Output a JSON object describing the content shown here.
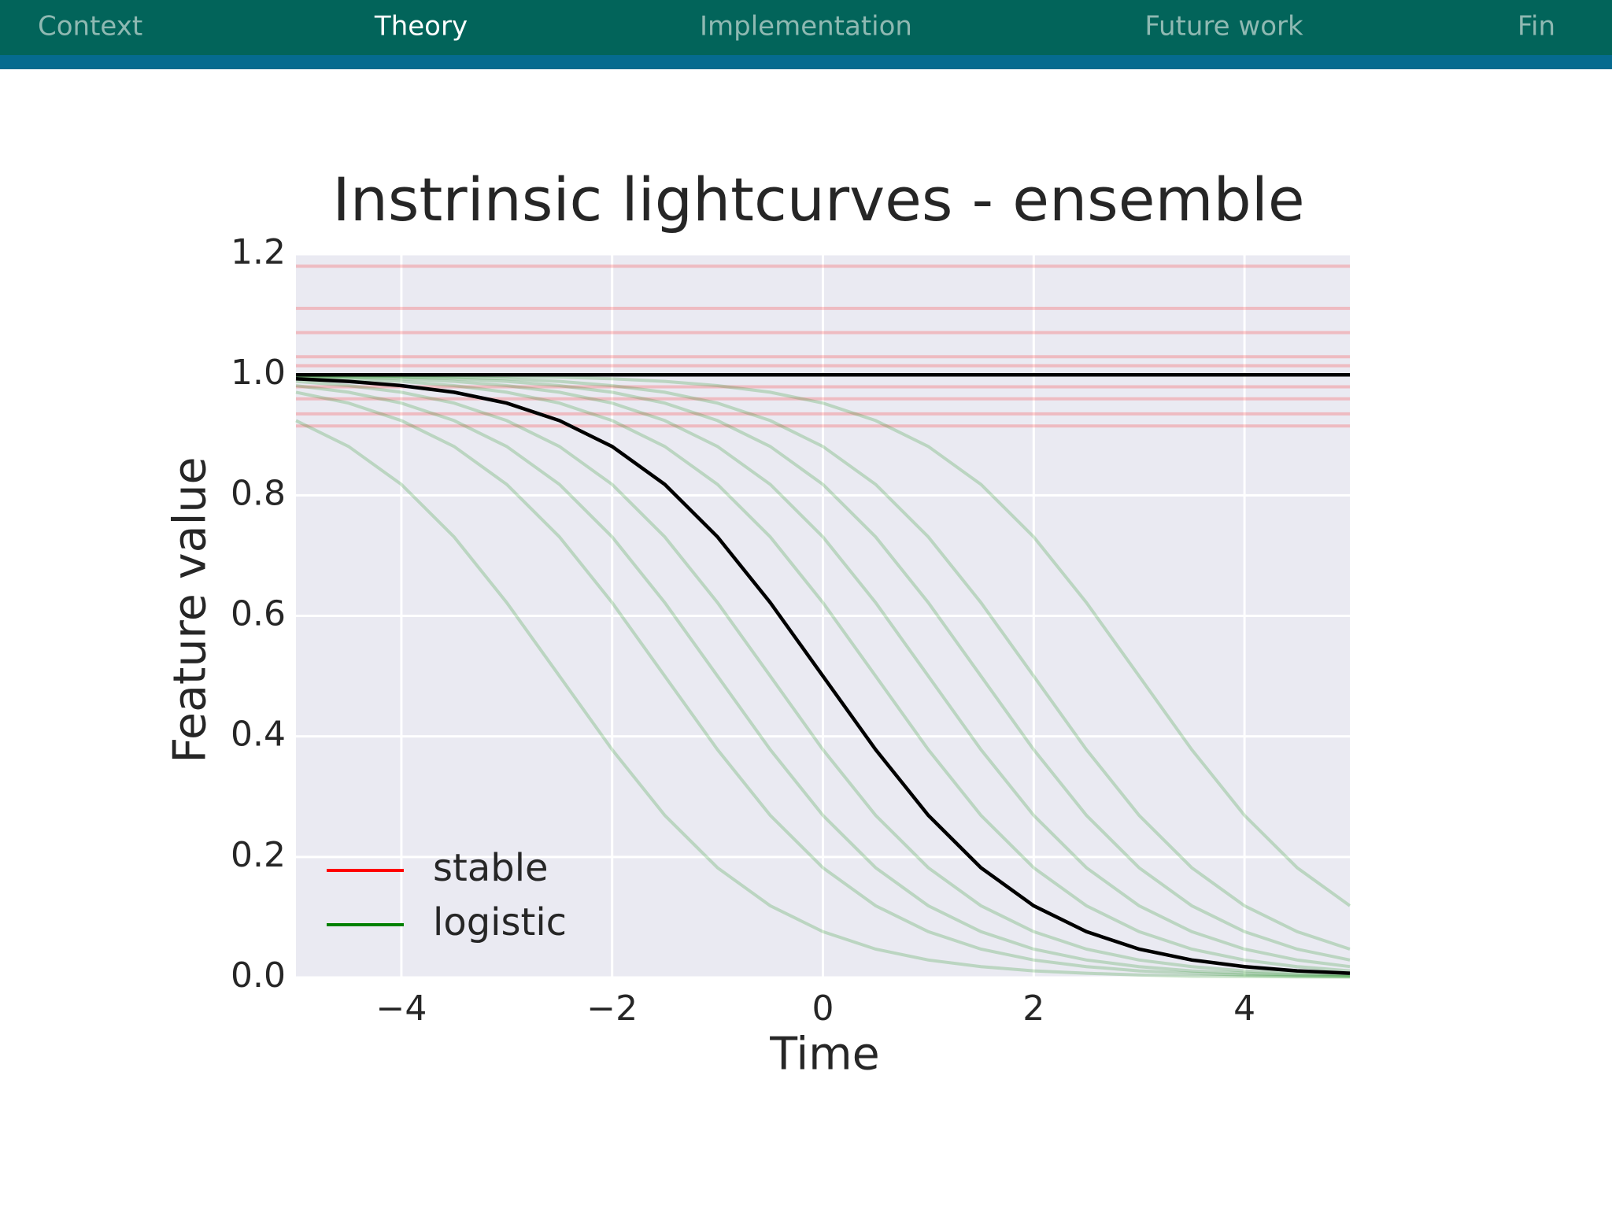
{
  "nav": {
    "items": [
      "Context",
      "Theory",
      "Implementation",
      "Future work",
      "Fin"
    ],
    "active": 1
  },
  "chart_data": {
    "type": "line",
    "title": "Instrinsic lightcurves - ensemble",
    "x_label": "Time",
    "y_label": "Feature value",
    "xlim": [
      -5,
      5
    ],
    "ylim": [
      0,
      1.2
    ],
    "xticks": [
      {
        "value": -4,
        "label": "−4"
      },
      {
        "value": -2,
        "label": "−2"
      },
      0,
      2,
      4
    ],
    "yticks": [
      {
        "value": 0,
        "label": "0.0"
      },
      0.2,
      0.4,
      0.6,
      0.8,
      {
        "value": 1,
        "label": "1.0"
      },
      1.2
    ],
    "grid": true,
    "legend": "lower left",
    "x": [
      -5,
      -4.5,
      -4,
      -3.5,
      -3,
      -2.5,
      -2,
      -1.5,
      -1,
      -0.5,
      0,
      0.5,
      1,
      1.5,
      2,
      2.5,
      3,
      3.5,
      4,
      4.5,
      5
    ],
    "series": [
      {
        "name": "stable",
        "color": "#ff0000",
        "x": [
          -5,
          5
        ],
        "values": [
          [
            1.18,
            1.18
          ],
          [
            1.11,
            1.11
          ],
          [
            1.07,
            1.07
          ],
          [
            1.03,
            1.03
          ],
          [
            1.015,
            1.015
          ],
          [
            0.98,
            0.98
          ],
          [
            0.96,
            0.96
          ],
          [
            0.935,
            0.935
          ],
          [
            0.915,
            0.915
          ]
        ]
      },
      {
        "name": "logistic",
        "color": "#008000",
        "values": [
          [
            0.924,
            0.881,
            0.818,
            0.731,
            0.622,
            0.5,
            0.378,
            0.269,
            0.182,
            0.119,
            0.076,
            0.047,
            0.029,
            0.018,
            0.011,
            0.007,
            0.004,
            0.002,
            0.0015,
            0.0009,
            0.0006
          ],
          [
            0.971,
            0.953,
            0.924,
            0.881,
            0.818,
            0.731,
            0.622,
            0.5,
            0.378,
            0.269,
            0.182,
            0.119,
            0.076,
            0.047,
            0.029,
            0.018,
            0.011,
            0.007,
            0.004,
            0.002,
            0.0015
          ],
          [
            0.982,
            0.971,
            0.953,
            0.924,
            0.881,
            0.818,
            0.731,
            0.622,
            0.5,
            0.378,
            0.269,
            0.182,
            0.119,
            0.076,
            0.047,
            0.029,
            0.018,
            0.011,
            0.007,
            0.004,
            0.002
          ],
          [
            0.989,
            0.982,
            0.971,
            0.953,
            0.924,
            0.881,
            0.818,
            0.731,
            0.622,
            0.5,
            0.378,
            0.269,
            0.182,
            0.119,
            0.076,
            0.047,
            0.029,
            0.018,
            0.011,
            0.007,
            0.004
          ],
          [
            0.9959,
            0.9933,
            0.989,
            0.982,
            0.971,
            0.953,
            0.924,
            0.881,
            0.818,
            0.731,
            0.622,
            0.5,
            0.378,
            0.269,
            0.182,
            0.119,
            0.076,
            0.047,
            0.029,
            0.018,
            0.011
          ],
          [
            0.9975,
            0.9959,
            0.9933,
            0.989,
            0.982,
            0.971,
            0.953,
            0.924,
            0.881,
            0.818,
            0.731,
            0.622,
            0.5,
            0.378,
            0.269,
            0.182,
            0.119,
            0.076,
            0.047,
            0.029,
            0.018
          ],
          [
            0.9985,
            0.9975,
            0.9959,
            0.9933,
            0.989,
            0.982,
            0.971,
            0.953,
            0.924,
            0.881,
            0.818,
            0.731,
            0.622,
            0.5,
            0.378,
            0.269,
            0.182,
            0.119,
            0.076,
            0.047,
            0.029
          ],
          [
            0.9991,
            0.9985,
            0.9975,
            0.9959,
            0.9933,
            0.989,
            0.982,
            0.971,
            0.953,
            0.924,
            0.881,
            0.818,
            0.731,
            0.622,
            0.5,
            0.378,
            0.269,
            0.182,
            0.119,
            0.076,
            0.047
          ],
          [
            0.9997,
            0.9994,
            0.9991,
            0.9985,
            0.9975,
            0.9959,
            0.9933,
            0.989,
            0.982,
            0.971,
            0.953,
            0.924,
            0.881,
            0.818,
            0.731,
            0.622,
            0.5,
            0.378,
            0.269,
            0.182,
            0.119
          ]
        ]
      },
      {
        "color": "#000000",
        "x": [
          -5,
          5
        ],
        "values": [
          [
            1,
            1
          ]
        ]
      },
      {
        "color": "#000000",
        "values": [
          [
            0.9933,
            0.989,
            0.982,
            0.971,
            0.953,
            0.924,
            0.881,
            0.818,
            0.731,
            0.622,
            0.5,
            0.378,
            0.269,
            0.182,
            0.119,
            0.076,
            0.047,
            0.029,
            0.018,
            0.011,
            0.007
          ]
        ]
      }
    ]
  }
}
